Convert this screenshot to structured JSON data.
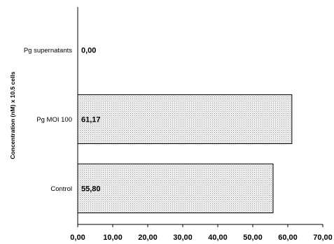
{
  "chart_data": {
    "type": "bar",
    "orientation": "horizontal",
    "categories": [
      "Pg supernatants",
      "Pg MOI 100",
      "Control"
    ],
    "values": [
      0.0,
      61.17,
      55.8
    ],
    "value_labels": [
      "0,00",
      "61,17",
      "55,80"
    ],
    "ylabel": "Concentration (nM) x 10.5 cells",
    "xlabel": "",
    "xlim": [
      0,
      70
    ],
    "x_ticks": [
      0,
      10,
      20,
      30,
      40,
      50,
      60,
      70
    ],
    "x_tick_labels": [
      "0,00",
      "10,00",
      "20,00",
      "30,00",
      "40,00",
      "50,00",
      "60,00",
      "70,00"
    ],
    "grid": false,
    "legend": "none",
    "bar_fill": "#e6e6e6",
    "bar_pattern": "dotted",
    "bar_stroke": "#000000"
  }
}
